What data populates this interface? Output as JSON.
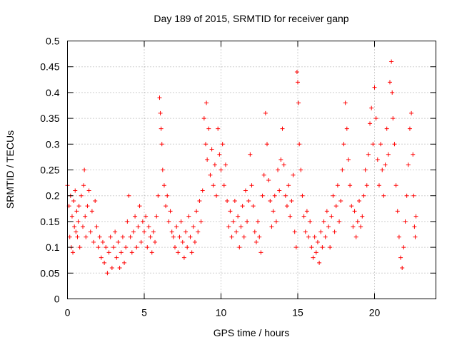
{
  "chart_data": {
    "type": "scatter",
    "title": "Day 189 of 2015, SRMTID for receiver ganp",
    "xlabel": "GPS time / hours",
    "ylabel": "SRMTID / TECUs",
    "xlim": [
      0,
      24
    ],
    "ylim": [
      0,
      0.5
    ],
    "x_ticks": [
      0,
      5,
      10,
      15,
      20
    ],
    "x_tick_labels": [
      "0",
      "5",
      "10",
      "15",
      "20"
    ],
    "y_ticks": [
      0,
      0.05,
      0.1,
      0.15,
      0.2,
      0.25,
      0.3,
      0.35,
      0.4,
      0.45,
      0.5
    ],
    "y_tick_labels": [
      "0",
      "0.05",
      "0.1",
      "0.15",
      "0.2",
      "0.25",
      "0.3",
      "0.35",
      "0.4",
      "0.45",
      "0.5"
    ],
    "grid": true,
    "marker": "+",
    "marker_color": "#ff0000",
    "series": [
      {
        "name": "SRMTID",
        "color": "#ff0000",
        "points": [
          [
            0.0,
            0.22
          ],
          [
            0.1,
            0.18
          ],
          [
            0.15,
            0.12
          ],
          [
            0.2,
            0.2
          ],
          [
            0.25,
            0.1
          ],
          [
            0.3,
            0.16
          ],
          [
            0.35,
            0.09
          ],
          [
            0.4,
            0.19
          ],
          [
            0.45,
            0.14
          ],
          [
            0.5,
            0.21
          ],
          [
            0.55,
            0.13
          ],
          [
            0.6,
            0.17
          ],
          [
            0.65,
            0.12
          ],
          [
            0.7,
            0.15
          ],
          [
            0.75,
            0.18
          ],
          [
            0.8,
            0.1
          ],
          [
            0.9,
            0.2
          ],
          [
            1.0,
            0.14
          ],
          [
            1.05,
            0.22
          ],
          [
            1.1,
            0.25
          ],
          [
            1.15,
            0.16
          ],
          [
            1.2,
            0.12
          ],
          [
            1.3,
            0.18
          ],
          [
            1.4,
            0.21
          ],
          [
            1.5,
            0.13
          ],
          [
            1.6,
            0.17
          ],
          [
            1.7,
            0.11
          ],
          [
            1.8,
            0.19
          ],
          [
            1.9,
            0.14
          ],
          [
            2.0,
            0.1
          ],
          [
            2.1,
            0.12
          ],
          [
            2.2,
            0.08
          ],
          [
            2.3,
            0.11
          ],
          [
            2.4,
            0.07
          ],
          [
            2.5,
            0.1
          ],
          [
            2.6,
            0.05
          ],
          [
            2.7,
            0.09
          ],
          [
            2.8,
            0.12
          ],
          [
            2.9,
            0.06
          ],
          [
            3.0,
            0.1
          ],
          [
            3.1,
            0.13
          ],
          [
            3.2,
            0.08
          ],
          [
            3.3,
            0.11
          ],
          [
            3.4,
            0.06
          ],
          [
            3.5,
            0.09
          ],
          [
            3.6,
            0.12
          ],
          [
            3.7,
            0.07
          ],
          [
            3.8,
            0.1
          ],
          [
            3.9,
            0.15
          ],
          [
            4.0,
            0.2
          ],
          [
            4.1,
            0.12
          ],
          [
            4.2,
            0.09
          ],
          [
            4.3,
            0.13
          ],
          [
            4.4,
            0.16
          ],
          [
            4.5,
            0.1
          ],
          [
            4.6,
            0.14
          ],
          [
            4.7,
            0.18
          ],
          [
            4.8,
            0.11
          ],
          [
            4.9,
            0.15
          ],
          [
            5.0,
            0.13
          ],
          [
            5.1,
            0.16
          ],
          [
            5.2,
            0.1
          ],
          [
            5.3,
            0.14
          ],
          [
            5.4,
            0.12
          ],
          [
            5.5,
            0.09
          ],
          [
            5.6,
            0.13
          ],
          [
            5.7,
            0.11
          ],
          [
            5.8,
            0.16
          ],
          [
            5.9,
            0.2
          ],
          [
            6.0,
            0.39
          ],
          [
            6.05,
            0.36
          ],
          [
            6.1,
            0.33
          ],
          [
            6.15,
            0.3
          ],
          [
            6.2,
            0.25
          ],
          [
            6.3,
            0.22
          ],
          [
            6.4,
            0.18
          ],
          [
            6.5,
            0.2
          ],
          [
            6.6,
            0.15
          ],
          [
            6.7,
            0.17
          ],
          [
            6.8,
            0.13
          ],
          [
            6.9,
            0.12
          ],
          [
            7.0,
            0.1
          ],
          [
            7.1,
            0.14
          ],
          [
            7.2,
            0.09
          ],
          [
            7.3,
            0.12
          ],
          [
            7.4,
            0.15
          ],
          [
            7.5,
            0.11
          ],
          [
            7.6,
            0.08
          ],
          [
            7.7,
            0.13
          ],
          [
            7.8,
            0.1
          ],
          [
            7.9,
            0.16
          ],
          [
            8.0,
            0.12
          ],
          [
            8.1,
            0.09
          ],
          [
            8.2,
            0.14
          ],
          [
            8.3,
            0.11
          ],
          [
            8.4,
            0.17
          ],
          [
            8.5,
            0.13
          ],
          [
            8.6,
            0.19
          ],
          [
            8.7,
            0.15
          ],
          [
            8.8,
            0.21
          ],
          [
            8.9,
            0.35
          ],
          [
            9.0,
            0.3
          ],
          [
            9.05,
            0.38
          ],
          [
            9.1,
            0.27
          ],
          [
            9.2,
            0.33
          ],
          [
            9.3,
            0.24
          ],
          [
            9.4,
            0.29
          ],
          [
            9.5,
            0.22
          ],
          [
            9.6,
            0.26
          ],
          [
            9.7,
            0.2
          ],
          [
            9.8,
            0.33
          ],
          [
            9.9,
            0.28
          ],
          [
            10.0,
            0.25
          ],
          [
            10.1,
            0.3
          ],
          [
            10.2,
            0.22
          ],
          [
            10.3,
            0.26
          ],
          [
            10.4,
            0.19
          ],
          [
            10.5,
            0.14
          ],
          [
            10.6,
            0.17
          ],
          [
            10.7,
            0.12
          ],
          [
            10.8,
            0.15
          ],
          [
            10.9,
            0.19
          ],
          [
            11.0,
            0.13
          ],
          [
            11.1,
            0.16
          ],
          [
            11.2,
            0.1
          ],
          [
            11.3,
            0.14
          ],
          [
            11.4,
            0.18
          ],
          [
            11.5,
            0.12
          ],
          [
            11.6,
            0.21
          ],
          [
            11.7,
            0.15
          ],
          [
            11.8,
            0.19
          ],
          [
            11.9,
            0.28
          ],
          [
            12.0,
            0.22
          ],
          [
            12.1,
            0.18
          ],
          [
            12.2,
            0.13
          ],
          [
            12.3,
            0.11
          ],
          [
            12.4,
            0.15
          ],
          [
            12.5,
            0.12
          ],
          [
            12.6,
            0.09
          ],
          [
            12.7,
            0.2
          ],
          [
            12.8,
            0.24
          ],
          [
            12.9,
            0.36
          ],
          [
            13.0,
            0.3
          ],
          [
            13.1,
            0.23
          ],
          [
            13.2,
            0.19
          ],
          [
            13.3,
            0.14
          ],
          [
            13.4,
            0.17
          ],
          [
            13.5,
            0.2
          ],
          [
            13.6,
            0.15
          ],
          [
            13.7,
            0.25
          ],
          [
            13.8,
            0.21
          ],
          [
            13.9,
            0.27
          ],
          [
            14.0,
            0.33
          ],
          [
            14.1,
            0.26
          ],
          [
            14.2,
            0.2
          ],
          [
            14.3,
            0.18
          ],
          [
            14.4,
            0.22
          ],
          [
            14.5,
            0.16
          ],
          [
            14.6,
            0.19
          ],
          [
            14.7,
            0.24
          ],
          [
            14.8,
            0.13
          ],
          [
            14.9,
            0.1
          ],
          [
            14.95,
            0.44
          ],
          [
            15.0,
            0.42
          ],
          [
            15.05,
            0.38
          ],
          [
            15.1,
            0.3
          ],
          [
            15.2,
            0.25
          ],
          [
            15.3,
            0.2
          ],
          [
            15.4,
            0.16
          ],
          [
            15.5,
            0.13
          ],
          [
            15.6,
            0.17
          ],
          [
            15.7,
            0.12
          ],
          [
            15.8,
            0.15
          ],
          [
            15.9,
            0.1
          ],
          [
            16.0,
            0.08
          ],
          [
            16.1,
            0.12
          ],
          [
            16.2,
            0.09
          ],
          [
            16.3,
            0.11
          ],
          [
            16.4,
            0.07
          ],
          [
            16.5,
            0.13
          ],
          [
            16.6,
            0.1
          ],
          [
            16.7,
            0.15
          ],
          [
            16.8,
            0.12
          ],
          [
            16.9,
            0.17
          ],
          [
            17.0,
            0.14
          ],
          [
            17.1,
            0.1
          ],
          [
            17.2,
            0.16
          ],
          [
            17.3,
            0.2
          ],
          [
            17.4,
            0.13
          ],
          [
            17.5,
            0.18
          ],
          [
            17.6,
            0.22
          ],
          [
            17.7,
            0.15
          ],
          [
            17.8,
            0.19
          ],
          [
            17.9,
            0.25
          ],
          [
            18.0,
            0.3
          ],
          [
            18.1,
            0.38
          ],
          [
            18.2,
            0.33
          ],
          [
            18.3,
            0.27
          ],
          [
            18.4,
            0.22
          ],
          [
            18.5,
            0.18
          ],
          [
            18.6,
            0.14
          ],
          [
            18.7,
            0.17
          ],
          [
            18.8,
            0.12
          ],
          [
            18.9,
            0.15
          ],
          [
            19.0,
            0.19
          ],
          [
            19.1,
            0.14
          ],
          [
            19.2,
            0.16
          ],
          [
            19.3,
            0.2
          ],
          [
            19.4,
            0.25
          ],
          [
            19.5,
            0.22
          ],
          [
            19.6,
            0.28
          ],
          [
            19.7,
            0.34
          ],
          [
            19.8,
            0.37
          ],
          [
            19.9,
            0.3
          ],
          [
            20.0,
            0.41
          ],
          [
            20.1,
            0.35
          ],
          [
            20.2,
            0.27
          ],
          [
            20.3,
            0.22
          ],
          [
            20.4,
            0.3
          ],
          [
            20.5,
            0.25
          ],
          [
            20.6,
            0.2
          ],
          [
            20.7,
            0.26
          ],
          [
            20.8,
            0.33
          ],
          [
            20.9,
            0.28
          ],
          [
            21.0,
            0.42
          ],
          [
            21.1,
            0.46
          ],
          [
            21.15,
            0.4
          ],
          [
            21.2,
            0.35
          ],
          [
            21.3,
            0.3
          ],
          [
            21.4,
            0.22
          ],
          [
            21.5,
            0.17
          ],
          [
            21.6,
            0.12
          ],
          [
            21.7,
            0.08
          ],
          [
            21.8,
            0.06
          ],
          [
            21.9,
            0.1
          ],
          [
            22.0,
            0.15
          ],
          [
            22.1,
            0.2
          ],
          [
            22.2,
            0.26
          ],
          [
            22.3,
            0.33
          ],
          [
            22.4,
            0.36
          ],
          [
            22.5,
            0.28
          ],
          [
            22.55,
            0.2
          ],
          [
            22.6,
            0.14
          ],
          [
            22.65,
            0.12
          ],
          [
            22.7,
            0.16
          ]
        ]
      }
    ]
  }
}
